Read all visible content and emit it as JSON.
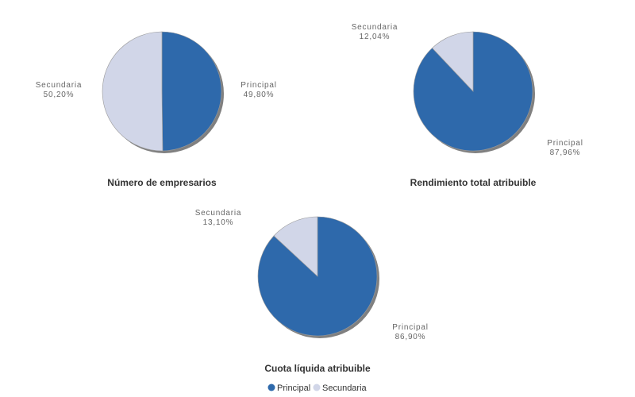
{
  "colors": {
    "Principal": "#2e69ab",
    "Secundaria": "#d1d6e8",
    "shadow": "#808080"
  },
  "legend": {
    "position": "bottom",
    "items": [
      "Principal",
      "Secundaria"
    ]
  },
  "chart_data": [
    {
      "type": "pie",
      "title": "Número de empresarios",
      "slices": [
        {
          "name": "Principal",
          "value": 49.8,
          "label": "49,80%"
        },
        {
          "name": "Secundaria",
          "value": 50.2,
          "label": "50,20%"
        }
      ]
    },
    {
      "type": "pie",
      "title": "Rendimiento total atribuible",
      "slices": [
        {
          "name": "Principal",
          "value": 87.96,
          "label": "87,96%"
        },
        {
          "name": "Secundaria",
          "value": 12.04,
          "label": "12,04%"
        }
      ]
    },
    {
      "type": "pie",
      "title": "Cuota líquida atribuible",
      "slices": [
        {
          "name": "Principal",
          "value": 86.9,
          "label": "86,90%"
        },
        {
          "name": "Secundaria",
          "value": 13.1,
          "label": "13,10%"
        }
      ]
    }
  ]
}
